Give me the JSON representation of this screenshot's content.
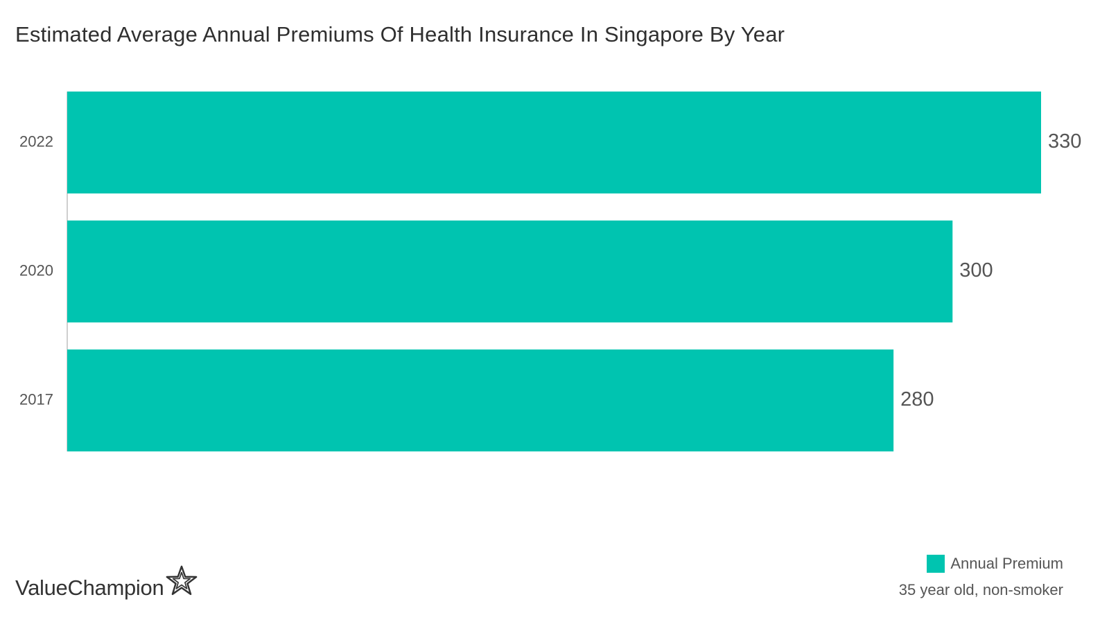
{
  "chart_data": {
    "type": "bar",
    "orientation": "horizontal",
    "title": "Estimated Average Annual Premiums Of Health Insurance In Singapore By Year",
    "categories": [
      "2022",
      "2020",
      "2017"
    ],
    "series": [
      {
        "name": "Annual Premium",
        "values": [
          330,
          300,
          280
        ]
      }
    ],
    "xlim": [
      0,
      330
    ],
    "grid": false,
    "data_labels": true,
    "legend_position": "bottom-right",
    "note": "35 year old, non-smoker",
    "bar_color": "#00c4b0"
  },
  "brand": {
    "name": "ValueChampion",
    "icon": "star-outline-icon"
  },
  "colors": {
    "title": "#2f2f2f",
    "text": "#555555",
    "axis": "#cfcfcf"
  }
}
